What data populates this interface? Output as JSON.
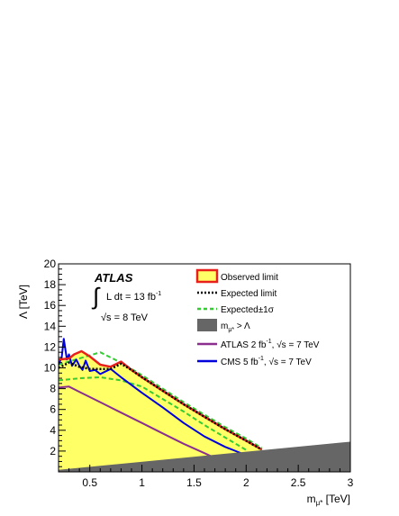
{
  "chart_data": {
    "type": "area",
    "title": "",
    "xlabel": "m",
    "xlabel_sub": "μ*",
    "xlabel_unit": " [TeV]",
    "ylabel": "Λ [TeV]",
    "xlim": [
      0.2,
      3.0
    ],
    "ylim": [
      0,
      20
    ],
    "x_ticks": [
      0.5,
      1.0,
      1.5,
      2.0,
      2.5,
      3.0
    ],
    "x_tick_labels": [
      "0.5",
      "1",
      "1.5",
      "2",
      "2.5",
      "3"
    ],
    "y_ticks": [
      2,
      4,
      6,
      8,
      10,
      12,
      14,
      16,
      18,
      20
    ],
    "y_tick_labels": [
      "2",
      "4",
      "6",
      "8",
      "10",
      "12",
      "14",
      "16",
      "18",
      "20"
    ],
    "grid": false,
    "legend_position": "top-right",
    "annotations": {
      "experiment": "ATLAS",
      "lumi_prefix": "L dt = 13 fb",
      "lumi_sup": "-1",
      "energy": "√s = 8 TeV"
    },
    "legend": [
      {
        "key": "observed",
        "label": "Observed limit"
      },
      {
        "key": "expected",
        "label": "Expected limit"
      },
      {
        "key": "band",
        "label": "Expected±1σ"
      },
      {
        "key": "excluded",
        "label_main": "m",
        "label_sub": "μ*",
        "label_tail": " > Λ"
      },
      {
        "key": "atlas7",
        "label_main": "ATLAS 2 fb",
        "label_sup": "-1",
        "label_tail": ", √s = 7 TeV"
      },
      {
        "key": "cms7",
        "label_main": "CMS 5 fb",
        "label_sup": "-1",
        "label_tail": ", √s = 7 TeV"
      }
    ],
    "series": [
      {
        "key": "observed",
        "color": "#e8201c",
        "fill": "#ffff66",
        "x": [
          0.2,
          0.3,
          0.35,
          0.42,
          0.5,
          0.6,
          0.7,
          0.8,
          0.9,
          1.0,
          1.2,
          1.4,
          1.6,
          1.8,
          2.0,
          2.15
        ],
        "y": [
          10.8,
          10.9,
          11.3,
          11.6,
          11.1,
          10.3,
          10.1,
          10.6,
          9.8,
          9.1,
          7.8,
          6.5,
          5.3,
          4.1,
          3.0,
          2.15
        ]
      },
      {
        "key": "expected",
        "color": "#000000",
        "x": [
          0.2,
          0.3,
          0.4,
          0.5,
          0.6,
          0.7,
          0.8,
          0.9,
          1.0,
          1.2,
          1.4,
          1.6,
          1.8,
          2.0,
          2.15
        ],
        "y": [
          10.0,
          10.5,
          10.1,
          9.9,
          9.9,
          9.9,
          10.4,
          9.8,
          9.1,
          7.8,
          6.5,
          5.3,
          4.1,
          3.0,
          2.15
        ]
      },
      {
        "key": "band_up",
        "color": "#33cc33",
        "x": [
          0.2,
          0.4,
          0.6,
          0.8,
          1.0,
          1.2,
          1.4,
          1.6,
          1.8,
          2.0,
          2.15
        ],
        "y": [
          10.3,
          10.9,
          11.5,
          10.5,
          9.3,
          8.0,
          6.7,
          5.5,
          4.3,
          3.2,
          2.3
        ]
      },
      {
        "key": "band_down",
        "color": "#33cc33",
        "x": [
          0.2,
          0.4,
          0.6,
          0.8,
          1.0,
          1.2,
          1.4,
          1.6,
          1.8,
          2.0
        ],
        "y": [
          8.8,
          9.0,
          9.1,
          8.8,
          8.2,
          7.0,
          5.8,
          4.5,
          3.3,
          2.1
        ]
      },
      {
        "key": "cms7",
        "color": "#0000dd",
        "x": [
          0.2,
          0.23,
          0.25,
          0.28,
          0.3,
          0.33,
          0.37,
          0.4,
          0.43,
          0.46,
          0.5,
          0.55,
          0.6,
          0.7,
          0.8,
          1.0,
          1.2,
          1.4,
          1.6,
          1.8,
          2.0,
          2.1
        ],
        "y": [
          10.3,
          11.0,
          12.8,
          10.8,
          11.3,
          10.2,
          10.8,
          10.2,
          9.8,
          10.7,
          9.7,
          9.8,
          9.4,
          9.9,
          9.1,
          7.6,
          6.2,
          4.7,
          3.4,
          2.4,
          1.6,
          1.3
        ]
      },
      {
        "key": "atlas7",
        "color": "#8b2f8f",
        "x": [
          0.2,
          0.3,
          0.4,
          0.6,
          0.8,
          1.0,
          1.2,
          1.4,
          1.6,
          1.75
        ],
        "y": [
          8.1,
          8.2,
          7.7,
          6.7,
          5.7,
          4.7,
          3.7,
          2.7,
          1.8,
          1.1
        ]
      },
      {
        "key": "excluded",
        "color": "#666666",
        "x": [
          0.2,
          3.0,
          3.0,
          0.2
        ],
        "y": [
          0.2,
          2.9,
          0,
          0
        ]
      }
    ]
  }
}
